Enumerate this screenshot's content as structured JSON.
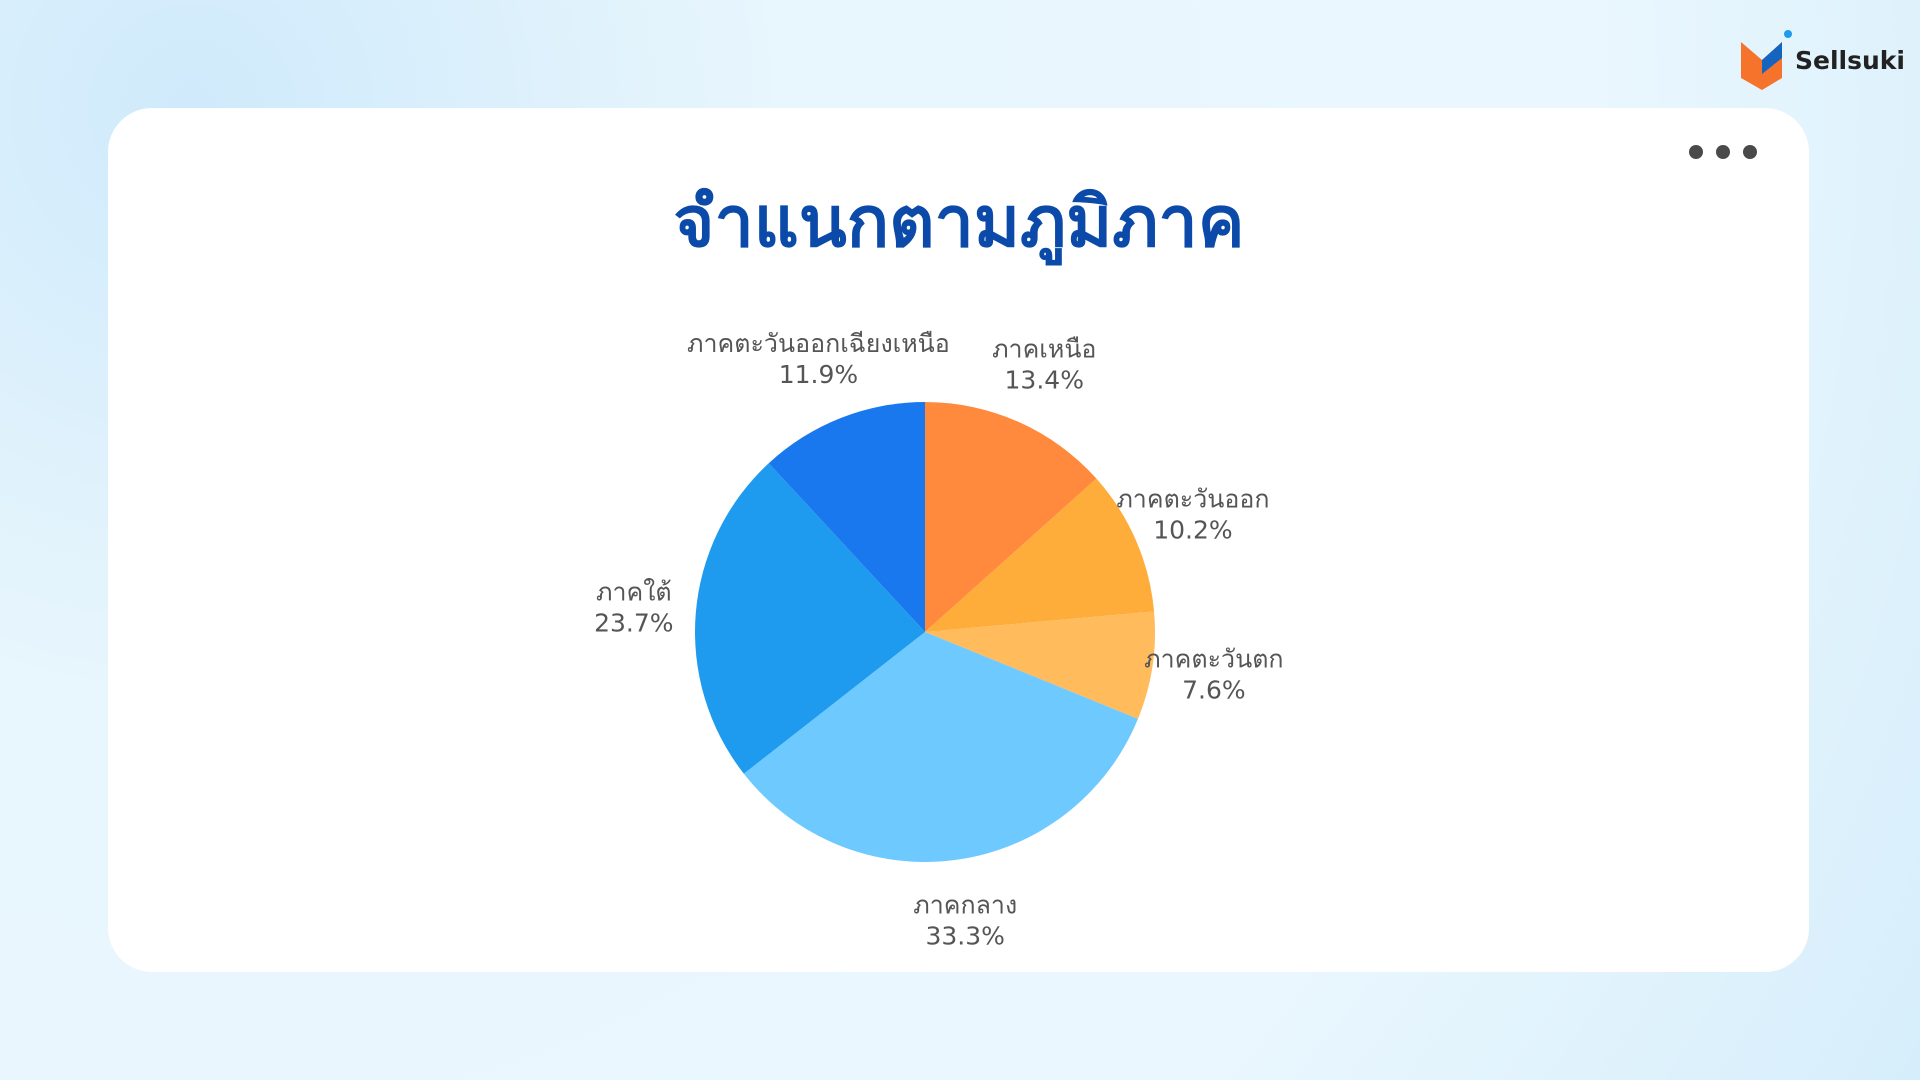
{
  "logo": "Sellsuki",
  "chart_data": {
    "type": "pie",
    "title": "จำแนกตามภูมิภาค",
    "categories": [
      "ภาคเหนือ",
      "ภาคตะวันออก",
      "ภาคตะวันตก",
      "ภาคกลาง",
      "ภาคใต้",
      "ภาคตะวันออกเฉียงเหนือ"
    ],
    "values": [
      13.4,
      10.2,
      7.6,
      33.3,
      23.7,
      11.9
    ],
    "value_labels": [
      "13.4%",
      "10.2%",
      "7.6%",
      "33.3%",
      "23.7%",
      "11.9%"
    ],
    "colors": [
      "#ff8a3d",
      "#ffad3a",
      "#ffbb5c",
      "#6ec9ff",
      "#1e9bef",
      "#1a78ee"
    ]
  }
}
